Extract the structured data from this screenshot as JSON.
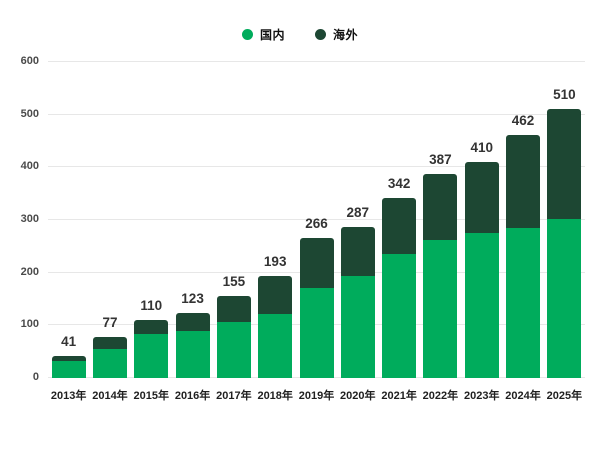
{
  "legend": {
    "items": [
      {
        "label": "国内",
        "color": "#00AC5C"
      },
      {
        "label": "海外",
        "color": "#1D4733"
      }
    ]
  },
  "chart_data": {
    "type": "bar",
    "stacked": true,
    "title": "",
    "categories": [
      "2013年",
      "2014年",
      "2015年",
      "2016年",
      "2017年",
      "2018年",
      "2019年",
      "2020年",
      "2021年",
      "2022年",
      "2023年",
      "2024年",
      "2025年"
    ],
    "series": [
      {
        "name": "国内",
        "color": "#00AC5C",
        "values": [
          33,
          56,
          84,
          89,
          106,
          122,
          170,
          194,
          236,
          263,
          275,
          285,
          301
        ]
      },
      {
        "name": "海外",
        "color": "#1D4733",
        "values": [
          8,
          21,
          26,
          34,
          49,
          71,
          96,
          93,
          106,
          124,
          135,
          177,
          209
        ]
      }
    ],
    "totals": [
      41,
      77,
      110,
      123,
      155,
      193,
      266,
      287,
      342,
      387,
      410,
      462,
      510
    ],
    "ylabel": "",
    "xlabel": "",
    "ylim": [
      0,
      600
    ],
    "ytick_step": 100,
    "yticks": [
      "0",
      "100",
      "200",
      "300",
      "400",
      "500",
      "600"
    ],
    "grid": true,
    "grid_color": "#e7e7e7",
    "legend_position": "top-center",
    "value_labels": "total-above-bar"
  }
}
